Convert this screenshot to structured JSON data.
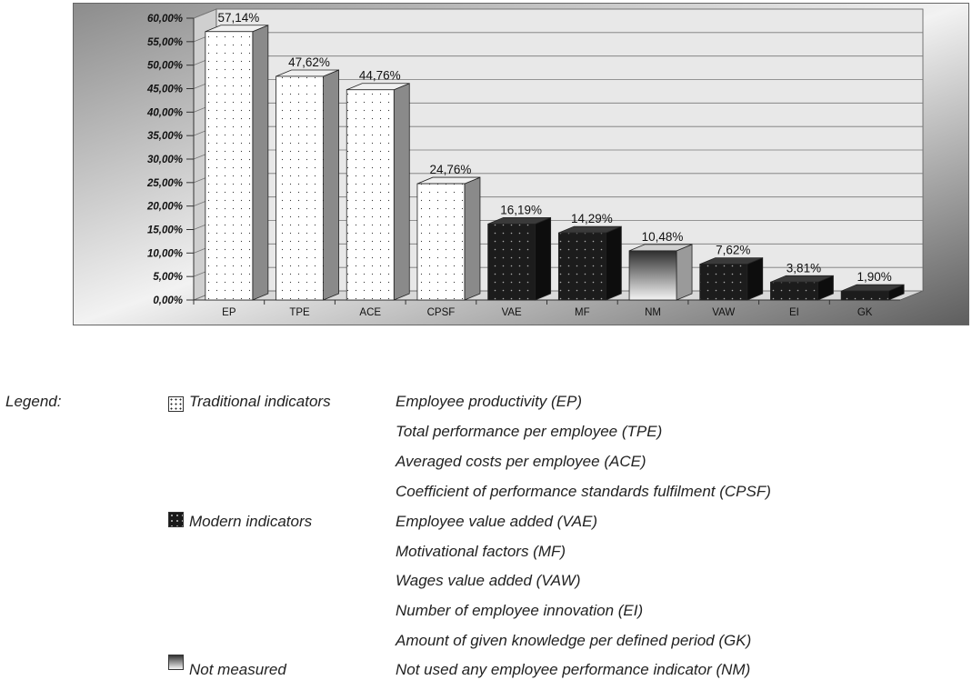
{
  "chart_data": {
    "type": "bar",
    "categories": [
      "EP",
      "TPE",
      "ACE",
      "CPSF",
      "VAE",
      "MF",
      "NM",
      "VAW",
      "EI",
      "GK"
    ],
    "values": [
      57.14,
      47.62,
      44.76,
      24.76,
      16.19,
      14.29,
      10.48,
      7.62,
      3.81,
      1.9
    ],
    "data_labels": [
      "57,14%",
      "47,62%",
      "44,76%",
      "24,76%",
      "16,19%",
      "14,29%",
      "10,48%",
      "7,62%",
      "3,81%",
      "1,90%"
    ],
    "groups": [
      "traditional",
      "traditional",
      "traditional",
      "traditional",
      "modern",
      "modern",
      "not_measured",
      "modern",
      "modern",
      "modern"
    ],
    "y_ticks": [
      "0,00%",
      "5,00%",
      "10,00%",
      "15,00%",
      "20,00%",
      "25,00%",
      "30,00%",
      "35,00%",
      "40,00%",
      "45,00%",
      "50,00%",
      "55,00%",
      "60,00%"
    ],
    "ylim": [
      0,
      60
    ],
    "grid": true,
    "three_d": true,
    "title": "",
    "xlabel": "",
    "ylabel": ""
  },
  "colors": {
    "traditional": "#ffffff",
    "modern": "#1a1a1a",
    "not_measured_top": "#333333",
    "not_measured_bottom": "#f4f4f4"
  },
  "legend": {
    "title": "Legend:",
    "groups": [
      {
        "swatch": "traditional",
        "label": "Traditional indicators",
        "items": [
          "Employee productivity (EP)",
          "Total performance per employee (TPE)",
          "Averaged costs per employee (ACE)",
          "Coefficient of performance standards fulfilment (CPSF)"
        ]
      },
      {
        "swatch": "modern",
        "label": "Modern indicators",
        "items": [
          "Employee value added (VAE)",
          "Motivational factors (MF)",
          "Wages value added (VAW)",
          "Number of employee innovation (EI)",
          "Amount of given knowledge per defined period (GK)"
        ]
      },
      {
        "swatch": "not_measured",
        "label": "Not measured",
        "items": [
          "Not used any employee performance indicator (NM)"
        ]
      }
    ]
  }
}
